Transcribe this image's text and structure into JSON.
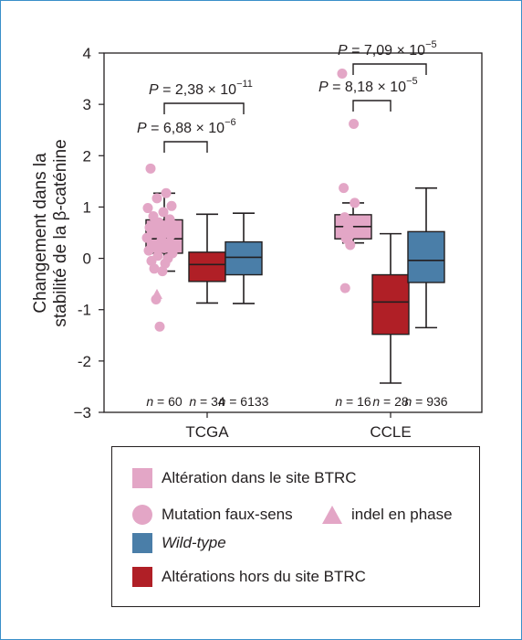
{
  "colors": {
    "pink": "#e3a6c6",
    "red": "#b01f26",
    "blue": "#4a7ea8",
    "ink": "#231f20",
    "frame": "#3a8fc9"
  },
  "chart_data": {
    "type": "box",
    "ylabel_line1": "Changement dans la",
    "ylabel_line2": "stabilité de la β-caténine",
    "ylim": [
      -3,
      4
    ],
    "yticks": [
      "4",
      "3",
      "2",
      "1",
      "0",
      "-1",
      "-2",
      "−3"
    ],
    "groups": [
      {
        "label": "TCGA",
        "boxes": [
          {
            "series": "Altération dans le site BTRC",
            "n_label": "n = 60",
            "q1": 0.1,
            "median": 0.38,
            "q3": 0.75,
            "whisker_low": -0.25,
            "whisker_high": 1.27
          },
          {
            "series": "Altérations hors du site BTRC",
            "n_label": "n = 34",
            "q1": -0.45,
            "median": -0.12,
            "q3": 0.12,
            "whisker_low": -0.87,
            "whisker_high": 0.86
          },
          {
            "series": "Wild-type",
            "n_label": "n = 6133",
            "q1": -0.32,
            "median": 0.02,
            "q3": 0.32,
            "whisker_low": -0.88,
            "whisker_high": 0.88
          }
        ],
        "points_missense": [
          1.75,
          1.27,
          1.17,
          1.02,
          0.98,
          0.9,
          0.82,
          0.76,
          0.7,
          0.65,
          0.6,
          0.55,
          0.5,
          0.45,
          0.4,
          0.35,
          0.3,
          0.25,
          0.2,
          0.15,
          0.1,
          0.05,
          0.0,
          -0.05,
          -0.1,
          -0.2,
          -0.25,
          -0.8,
          -1.33
        ],
        "points_inframe_indel": [
          -0.7
        ],
        "comparisons": [
          {
            "text": "P = 6,88 × 10",
            "exp": "−6",
            "from": 0,
            "to": 1
          },
          {
            "text": "P = 2,38 × 10",
            "exp": "−11",
            "from": 0,
            "to": 2
          }
        ]
      },
      {
        "label": "CCLE",
        "boxes": [
          {
            "series": "Altération dans le site BTRC",
            "n_label": "n = 16",
            "q1": 0.38,
            "median": 0.62,
            "q3": 0.85,
            "whisker_low": 0.3,
            "whisker_high": 1.08
          },
          {
            "series": "Altérations hors du site BTRC",
            "n_label": "n = 28",
            "q1": -1.48,
            "median": -0.85,
            "q3": -0.32,
            "whisker_low": -2.43,
            "whisker_high": 0.48
          },
          {
            "series": "Wild-type",
            "n_label": "n = 936",
            "q1": -0.47,
            "median": -0.04,
            "q3": 0.52,
            "whisker_low": -1.35,
            "whisker_high": 1.37
          }
        ],
        "points_missense": [
          3.6,
          2.62,
          1.37,
          1.08,
          0.8,
          0.6,
          0.45,
          0.38,
          0.26,
          -0.58
        ],
        "points_inframe_indel": [],
        "comparisons": [
          {
            "text": "P = 8,18 × 10",
            "exp": "−5",
            "from": 0,
            "to": 1
          },
          {
            "text": "P = 7,09 × 10",
            "exp": "−5",
            "from": 0,
            "to": 2
          }
        ]
      }
    ]
  },
  "legend": {
    "in_site": "Altération dans le site BTRC",
    "missense": "Mutation faux-sens",
    "indel": "indel en phase",
    "wild_type": "Wild-type",
    "out_site": "Altérations hors du site BTRC"
  }
}
